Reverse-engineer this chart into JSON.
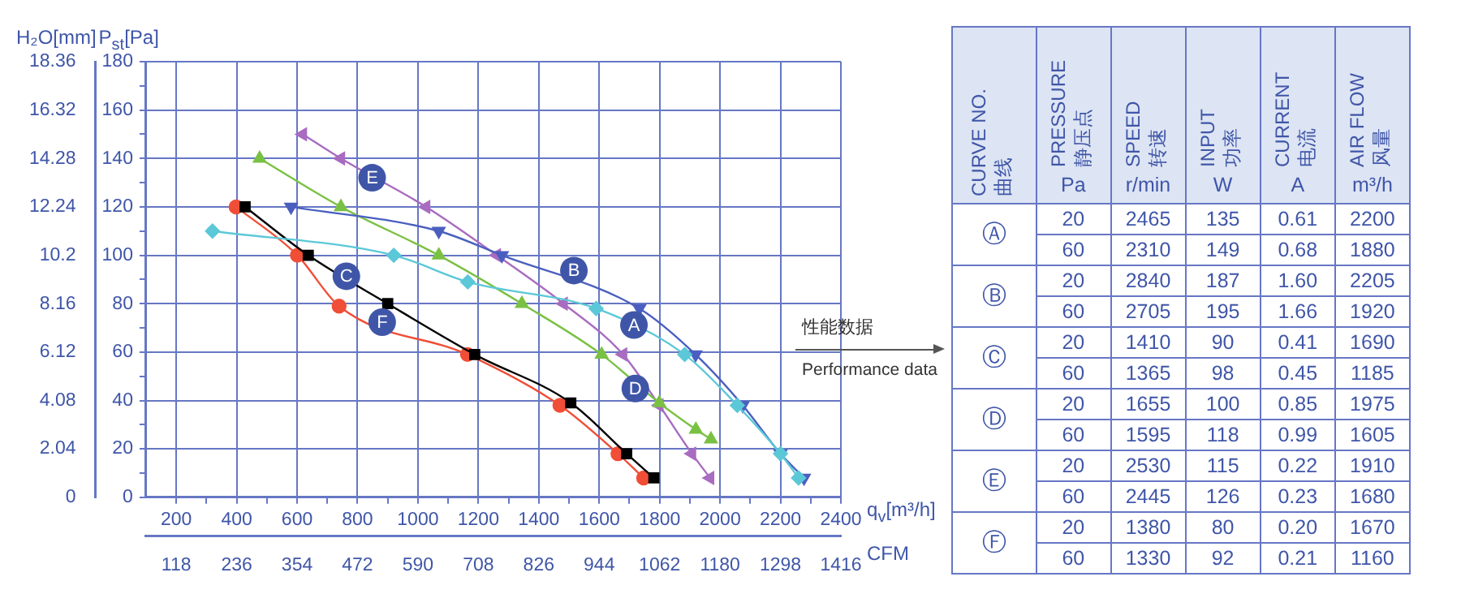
{
  "chart_data": [
    {
      "type": "line",
      "xlabel": "q$_{v}$[m³/h]",
      "x2label": "CFM",
      "ylabel": "P$_{st}$[Pa]",
      "y2label": "H₂O[mm]",
      "xlim": [
        100,
        2400
      ],
      "xticks": [
        {
          "value": 300,
          "label": null
        },
        200,
        400,
        {
          "value": 500,
          "label": null
        },
        600,
        {
          "value": 700,
          "label": null
        },
        800,
        {
          "value": 900,
          "label": null
        },
        1000,
        {
          "value": 1100,
          "label": null
        },
        1200,
        {
          "value": 1300,
          "label": null
        },
        1400,
        {
          "value": 1500,
          "label": null
        },
        1600,
        {
          "value": 1700,
          "label": null
        },
        1800,
        {
          "value": 1900,
          "label": null
        },
        2000,
        {
          "value": 2100,
          "label": null
        },
        2200,
        {
          "value": 2300,
          "label": null
        },
        2400
      ],
      "x2lim": [
        59,
        1416
      ],
      "x2ticks": [
        118,
        236,
        354,
        472,
        590,
        708,
        826,
        944,
        1062,
        1180,
        1298,
        1416
      ],
      "ylim": [
        0,
        180
      ],
      "yticks": [
        0,
        {
          "value": 10,
          "label": null
        },
        20,
        {
          "value": 30,
          "label": null
        },
        40,
        {
          "value": 50,
          "label": null
        },
        60,
        {
          "value": 70,
          "label": null
        },
        80,
        {
          "value": 90,
          "label": null
        },
        100,
        {
          "value": 110,
          "label": null
        },
        120,
        {
          "value": 130,
          "label": null
        },
        140,
        {
          "value": 150,
          "label": null
        },
        160,
        {
          "value": 170,
          "label": null
        },
        180
      ],
      "y2lim": [
        0,
        18.36
      ],
      "y2ticks": [
        0,
        2.04,
        4.08,
        6.12,
        8.16,
        10.2,
        12.24,
        14.28,
        16.32,
        18.36
      ],
      "grid": true,
      "legend": false,
      "series": [
        {
          "name": "A",
          "color": "#5bc8d8",
          "marker": "diamond",
          "x": [
            320,
            920,
            1165,
            1590,
            1883,
            2057,
            2200,
            2260
          ],
          "values": [
            110,
            100,
            89,
            78,
            59,
            38,
            18,
            8
          ]
        },
        {
          "name": "B",
          "color": "#4a5fbf",
          "marker": "triangle",
          "x": [
            580,
            1069,
            1278,
            1733,
            1919,
            2075,
            2200,
            2278
          ],
          "values": [
            120,
            110,
            100,
            78,
            59,
            38,
            18,
            8
          ]
        },
        {
          "name": "C",
          "color": "#000000",
          "marker": "square",
          "x": [
            428,
            637,
            900,
            1188,
            1506,
            1691,
            1781
          ],
          "values": [
            120,
            100,
            80,
            59,
            39,
            18,
            8
          ]
        },
        {
          "name": "D",
          "color": "#7ac143",
          "marker": "triangle",
          "x": [
            476,
            745,
            1069,
            1344,
            1608,
            1799,
            1920,
            1970
          ],
          "values": [
            140,
            120,
            100,
            80,
            59,
            39,
            28,
            24
          ]
        },
        {
          "name": "E",
          "color": "#a86cc1",
          "marker": "triangle",
          "x": [
            619,
            745,
            1027,
            1261,
            1482,
            1679,
            1799,
            1907,
            1967
          ],
          "values": [
            150,
            140,
            120,
            100,
            80,
            59,
            38,
            18,
            8
          ]
        },
        {
          "name": "F",
          "color": "#f04e37",
          "marker": "circle",
          "x": [
            398,
            601,
            739,
            1164,
            1470,
            1662,
            1747
          ],
          "values": [
            120,
            100,
            79,
            59,
            38,
            18,
            8
          ]
        }
      ]
    },
    {
      "type": "other",
      "annotations": [
        "性能数据",
        "Performance data"
      ],
      "categories": [
        "CURVE NO.\n曲线",
        "PRESSURE\n静压点",
        "SPEED\n转速",
        "INPUT\n功率",
        "CURRENT\n电流",
        "AIR FLOW\n风量"
      ],
      "y_categories": [
        "Ⓐ",
        "Ⓑ",
        "Ⓒ",
        "Ⓓ",
        "Ⓔ",
        "Ⓕ"
      ],
      "cell_labels": [
        [
          "Pa",
          "r/min",
          "W",
          "A",
          "m³/h"
        ],
        [
          "20",
          "2465",
          "135",
          "0.61",
          "2200"
        ],
        [
          "60",
          "2310",
          "149",
          "0.68",
          "1880"
        ],
        [
          "20",
          "2840",
          "187",
          "1.60",
          "2205"
        ],
        [
          "60",
          "2705",
          "195",
          "1.66",
          "1920"
        ],
        [
          "20",
          "1410",
          "90",
          "0.41",
          "1690"
        ],
        [
          "60",
          "1365",
          "98",
          "0.45",
          "1185"
        ],
        [
          "20",
          "1655",
          "100",
          "0.85",
          "1975"
        ],
        [
          "60",
          "1595",
          "118",
          "0.99",
          "1605"
        ],
        [
          "20",
          "2530",
          "115",
          "0.22",
          "1910"
        ],
        [
          "60",
          "2445",
          "126",
          "0.23",
          "1680"
        ],
        [
          "20",
          "1380",
          "80",
          "0.20",
          "1670"
        ],
        [
          "60",
          "1330",
          "92",
          "0.21",
          "1160"
        ]
      ]
    }
  ]
}
